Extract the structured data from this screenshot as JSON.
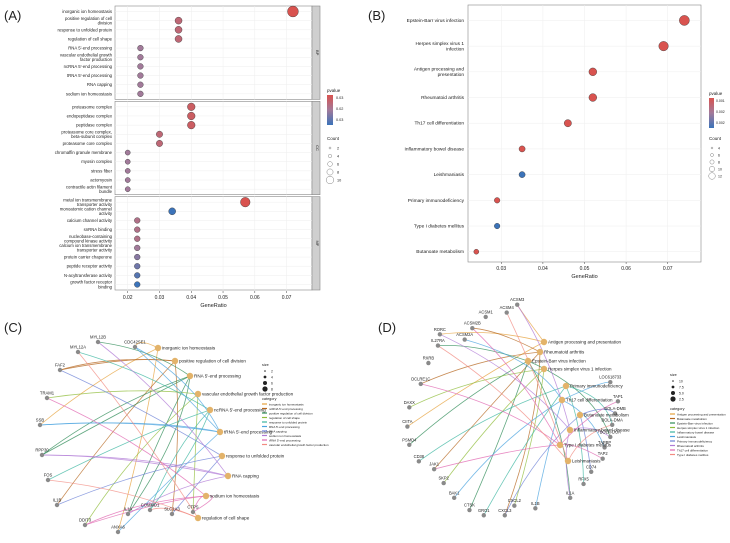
{
  "panels": {
    "A": "(A)",
    "B": "(B)",
    "C": "(C)",
    "D": "(D)"
  },
  "chart_data": [
    {
      "panel": "A",
      "type": "scatter",
      "xlabel": "GeneRatio",
      "xlim": [
        0.016,
        0.078
      ],
      "xticks": [
        0.02,
        0.03,
        0.04,
        0.05,
        0.06,
        0.07
      ],
      "facets": [
        {
          "name": "BP",
          "terms": [
            {
              "label": "inorganic ion homeostasis",
              "x": 0.072,
              "p": 0.016,
              "count": 12
            },
            {
              "label": "positive regulation of cell division",
              "x": 0.036,
              "p": 0.02,
              "count": 6
            },
            {
              "label": "response to unfolded protein",
              "x": 0.036,
              "p": 0.02,
              "count": 6,
              "highlight": true
            },
            {
              "label": "regulation of cell shape",
              "x": 0.036,
              "p": 0.02,
              "count": 6
            },
            {
              "label": "RNA 5'-end processing",
              "x": 0.024,
              "p": 0.024,
              "count": 4
            },
            {
              "label": "vascular endothelial growth factor production",
              "x": 0.024,
              "p": 0.024,
              "count": 4
            },
            {
              "label": "ncRNA 5'-end processing",
              "x": 0.024,
              "p": 0.024,
              "count": 4
            },
            {
              "label": "tRNA 5'-end processing",
              "x": 0.024,
              "p": 0.024,
              "count": 4
            },
            {
              "label": "RNA capping",
              "x": 0.024,
              "p": 0.024,
              "count": 4
            },
            {
              "label": "sodium ion homeostasis",
              "x": 0.024,
              "p": 0.024,
              "count": 4
            }
          ]
        },
        {
          "name": "CC",
          "terms": [
            {
              "label": "proteasome complex",
              "x": 0.04,
              "p": 0.018,
              "count": 7
            },
            {
              "label": "endopeptidase complex",
              "x": 0.04,
              "p": 0.018,
              "count": 7
            },
            {
              "label": "peptidase complex",
              "x": 0.04,
              "p": 0.018,
              "count": 7
            },
            {
              "label": "proteasome core complex, beta-subunit complex",
              "x": 0.03,
              "p": 0.02,
              "count": 5
            },
            {
              "label": "proteasome core complex",
              "x": 0.03,
              "p": 0.02,
              "count": 5
            },
            {
              "label": "chromaffin granule membrane",
              "x": 0.02,
              "p": 0.024,
              "count": 3
            },
            {
              "label": "myosin complex",
              "x": 0.02,
              "p": 0.024,
              "count": 3
            },
            {
              "label": "stress fiber",
              "x": 0.02,
              "p": 0.024,
              "count": 3
            },
            {
              "label": "actomyosin",
              "x": 0.02,
              "p": 0.024,
              "count": 3
            },
            {
              "label": "contractile actin filament bundle",
              "x": 0.02,
              "p": 0.024,
              "count": 3
            }
          ]
        },
        {
          "name": "MF",
          "terms": [
            {
              "label": "metal ion transmembrane transporter activity",
              "x": 0.057,
              "p": 0.016,
              "count": 10
            },
            {
              "label": "monoatomic cation channel activity",
              "x": 0.034,
              "p": 0.032,
              "count": 6
            },
            {
              "label": "calcium channel activity",
              "x": 0.023,
              "p": 0.022,
              "count": 4
            },
            {
              "label": "snRNA binding",
              "x": 0.023,
              "p": 0.022,
              "count": 4
            },
            {
              "label": "nucleobase-containing compound kinase activity",
              "x": 0.023,
              "p": 0.022,
              "count": 4
            },
            {
              "label": "calcium ion transmembrane transporter activity",
              "x": 0.023,
              "p": 0.024,
              "count": 4
            },
            {
              "label": "protein carrier chaperone",
              "x": 0.023,
              "p": 0.026,
              "count": 4
            },
            {
              "label": "peptide receptor activity",
              "x": 0.023,
              "p": 0.028,
              "count": 4
            },
            {
              "label": "N-acyltransferase activity",
              "x": 0.023,
              "p": 0.03,
              "count": 4
            },
            {
              "label": "growth factor receptor binding",
              "x": 0.023,
              "p": 0.032,
              "count": 4
            }
          ]
        }
      ],
      "legend": {
        "color_title": "pvalue",
        "color_ticks": [
          "0.03",
          "0.02",
          "0.03"
        ],
        "size_title": "Count",
        "size_ticks": [
          "2",
          "4",
          "6",
          "8",
          "10"
        ]
      }
    },
    {
      "panel": "B",
      "type": "scatter",
      "xlabel": "GeneRatio",
      "xlim": [
        0.022,
        0.078
      ],
      "xticks": [
        0.03,
        0.04,
        0.05,
        0.06,
        0.07
      ],
      "terms": [
        {
          "label": "Epstein-Barr virus infection",
          "x": 0.074,
          "p": 0.001,
          "count": 13
        },
        {
          "label": "Herpes simplex virus 1 infection",
          "x": 0.069,
          "p": 0.001,
          "count": 12
        },
        {
          "label": "Antigen processing and presentation",
          "x": 0.052,
          "p": 0.001,
          "count": 9
        },
        {
          "label": "Rheumatoid arthritis",
          "x": 0.052,
          "p": 0.001,
          "count": 9
        },
        {
          "label": "Th17 cell differentiation",
          "x": 0.046,
          "p": 0.001,
          "count": 8
        },
        {
          "label": "Inflammatory bowel disease",
          "x": 0.035,
          "p": 0.001,
          "count": 6
        },
        {
          "label": "Leishmaniasis",
          "x": 0.035,
          "p": 0.002,
          "count": 6
        },
        {
          "label": "Primary immunodeficiency",
          "x": 0.029,
          "p": 0.001,
          "count": 5
        },
        {
          "label": "Type I diabetes mellitus",
          "x": 0.029,
          "p": 0.002,
          "count": 5
        },
        {
          "label": "Butanoate metabolism",
          "x": 0.024,
          "p": 0.001,
          "count": 4,
          "highlight": true
        }
      ],
      "legend": {
        "color_title": "pvalue",
        "color_ticks": [
          "0.001",
          "0.002",
          "0.002"
        ],
        "size_title": "Count",
        "size_ticks": [
          "4",
          "6",
          "8",
          "10",
          "12"
        ]
      }
    },
    {
      "panel": "C",
      "type": "network",
      "categories": [
        "inorganic ion homeostasis",
        "ncRNA 5'-end processing",
        "positive regulation of cell division",
        "regulation of cell shape",
        "response to unfolded protein",
        "RNA 5'-end processing",
        "RNA capping",
        "sodium ion homeostasis",
        "tRNA 5'-end processing",
        "vascular endothelial growth factor production"
      ],
      "terms": [
        "inorganic ion homeostasis",
        "positive regulation of cell division",
        "RNA 5'-end processing",
        "vascular endothelial growth factor production",
        "ncRNA 5'-end processing",
        "tRNA 5'-end processing",
        "response to unfolded protein",
        "RNA capping",
        "sodium ion homeostasis",
        "regulation of cell shape"
      ],
      "genes": [
        "CDC42SE1",
        "MYL12B",
        "MYL12A",
        "FAF2",
        "TRAM1",
        "SSB",
        "RPP30",
        "FOS",
        "IL1B",
        "DDIT3",
        "ANXA6",
        "IL1A",
        "COMMD1",
        "SLC1A3",
        "CTPS"
      ],
      "legend": {
        "size_title": "size",
        "size_ticks": [
          "2",
          "4",
          "6",
          "8"
        ],
        "color_title": "category"
      }
    },
    {
      "panel": "D",
      "type": "network",
      "categories": [
        "Antigen processing and presentation",
        "Butanoate metabolism",
        "Epstein-Barr virus infection",
        "Herpes simplex virus 1 infection",
        "Inflammatory bowel disease",
        "Leishmaniasis",
        "Primary immunodeficiency",
        "Rheumatoid arthritis",
        "Th17 cell differentiation",
        "Type I diabetes mellitus"
      ],
      "terms": [
        "Antigen processing and presentation",
        "Rheumatoid arthritis",
        "Epstein-Barr virus infection",
        "Herpes simplex virus 1 infection",
        "Primary immunodeficiency",
        "Th17 cell differentiation",
        "Butanoate metabolism",
        "Inflammatory bowel disease",
        "Type I diabetes mellitus",
        "Leishmaniasis"
      ],
      "genes": [
        "ACSM3",
        "ACSM4",
        "ACSM1",
        "ACSM2B",
        "ACSM2A",
        "RORC",
        "IL27RA",
        "RXRB",
        "DCLRE1C",
        "DAXX",
        "CIITA",
        "PSMD4",
        "CD38",
        "JAK1",
        "SKP2",
        "BAK1",
        "CTSK",
        "GRO1",
        "CXCL3",
        "CXCL2",
        "IL1B",
        "IL1A",
        "RFX5",
        "CD74",
        "TAP2",
        "TAPBP",
        "BOLA-DOA",
        "BOLA-DMA",
        "BOLA-DMB",
        "TAP1",
        "LOC618733"
      ],
      "legend": {
        "size_title": "size",
        "size_ticks": [
          "10",
          "7.5",
          "5.0",
          "2.5"
        ],
        "color_title": "category"
      }
    }
  ],
  "colors": {
    "high": "#d9534f",
    "mid": "#a27a9a",
    "low": "#3b73b9",
    "highlight": "#e53935"
  }
}
